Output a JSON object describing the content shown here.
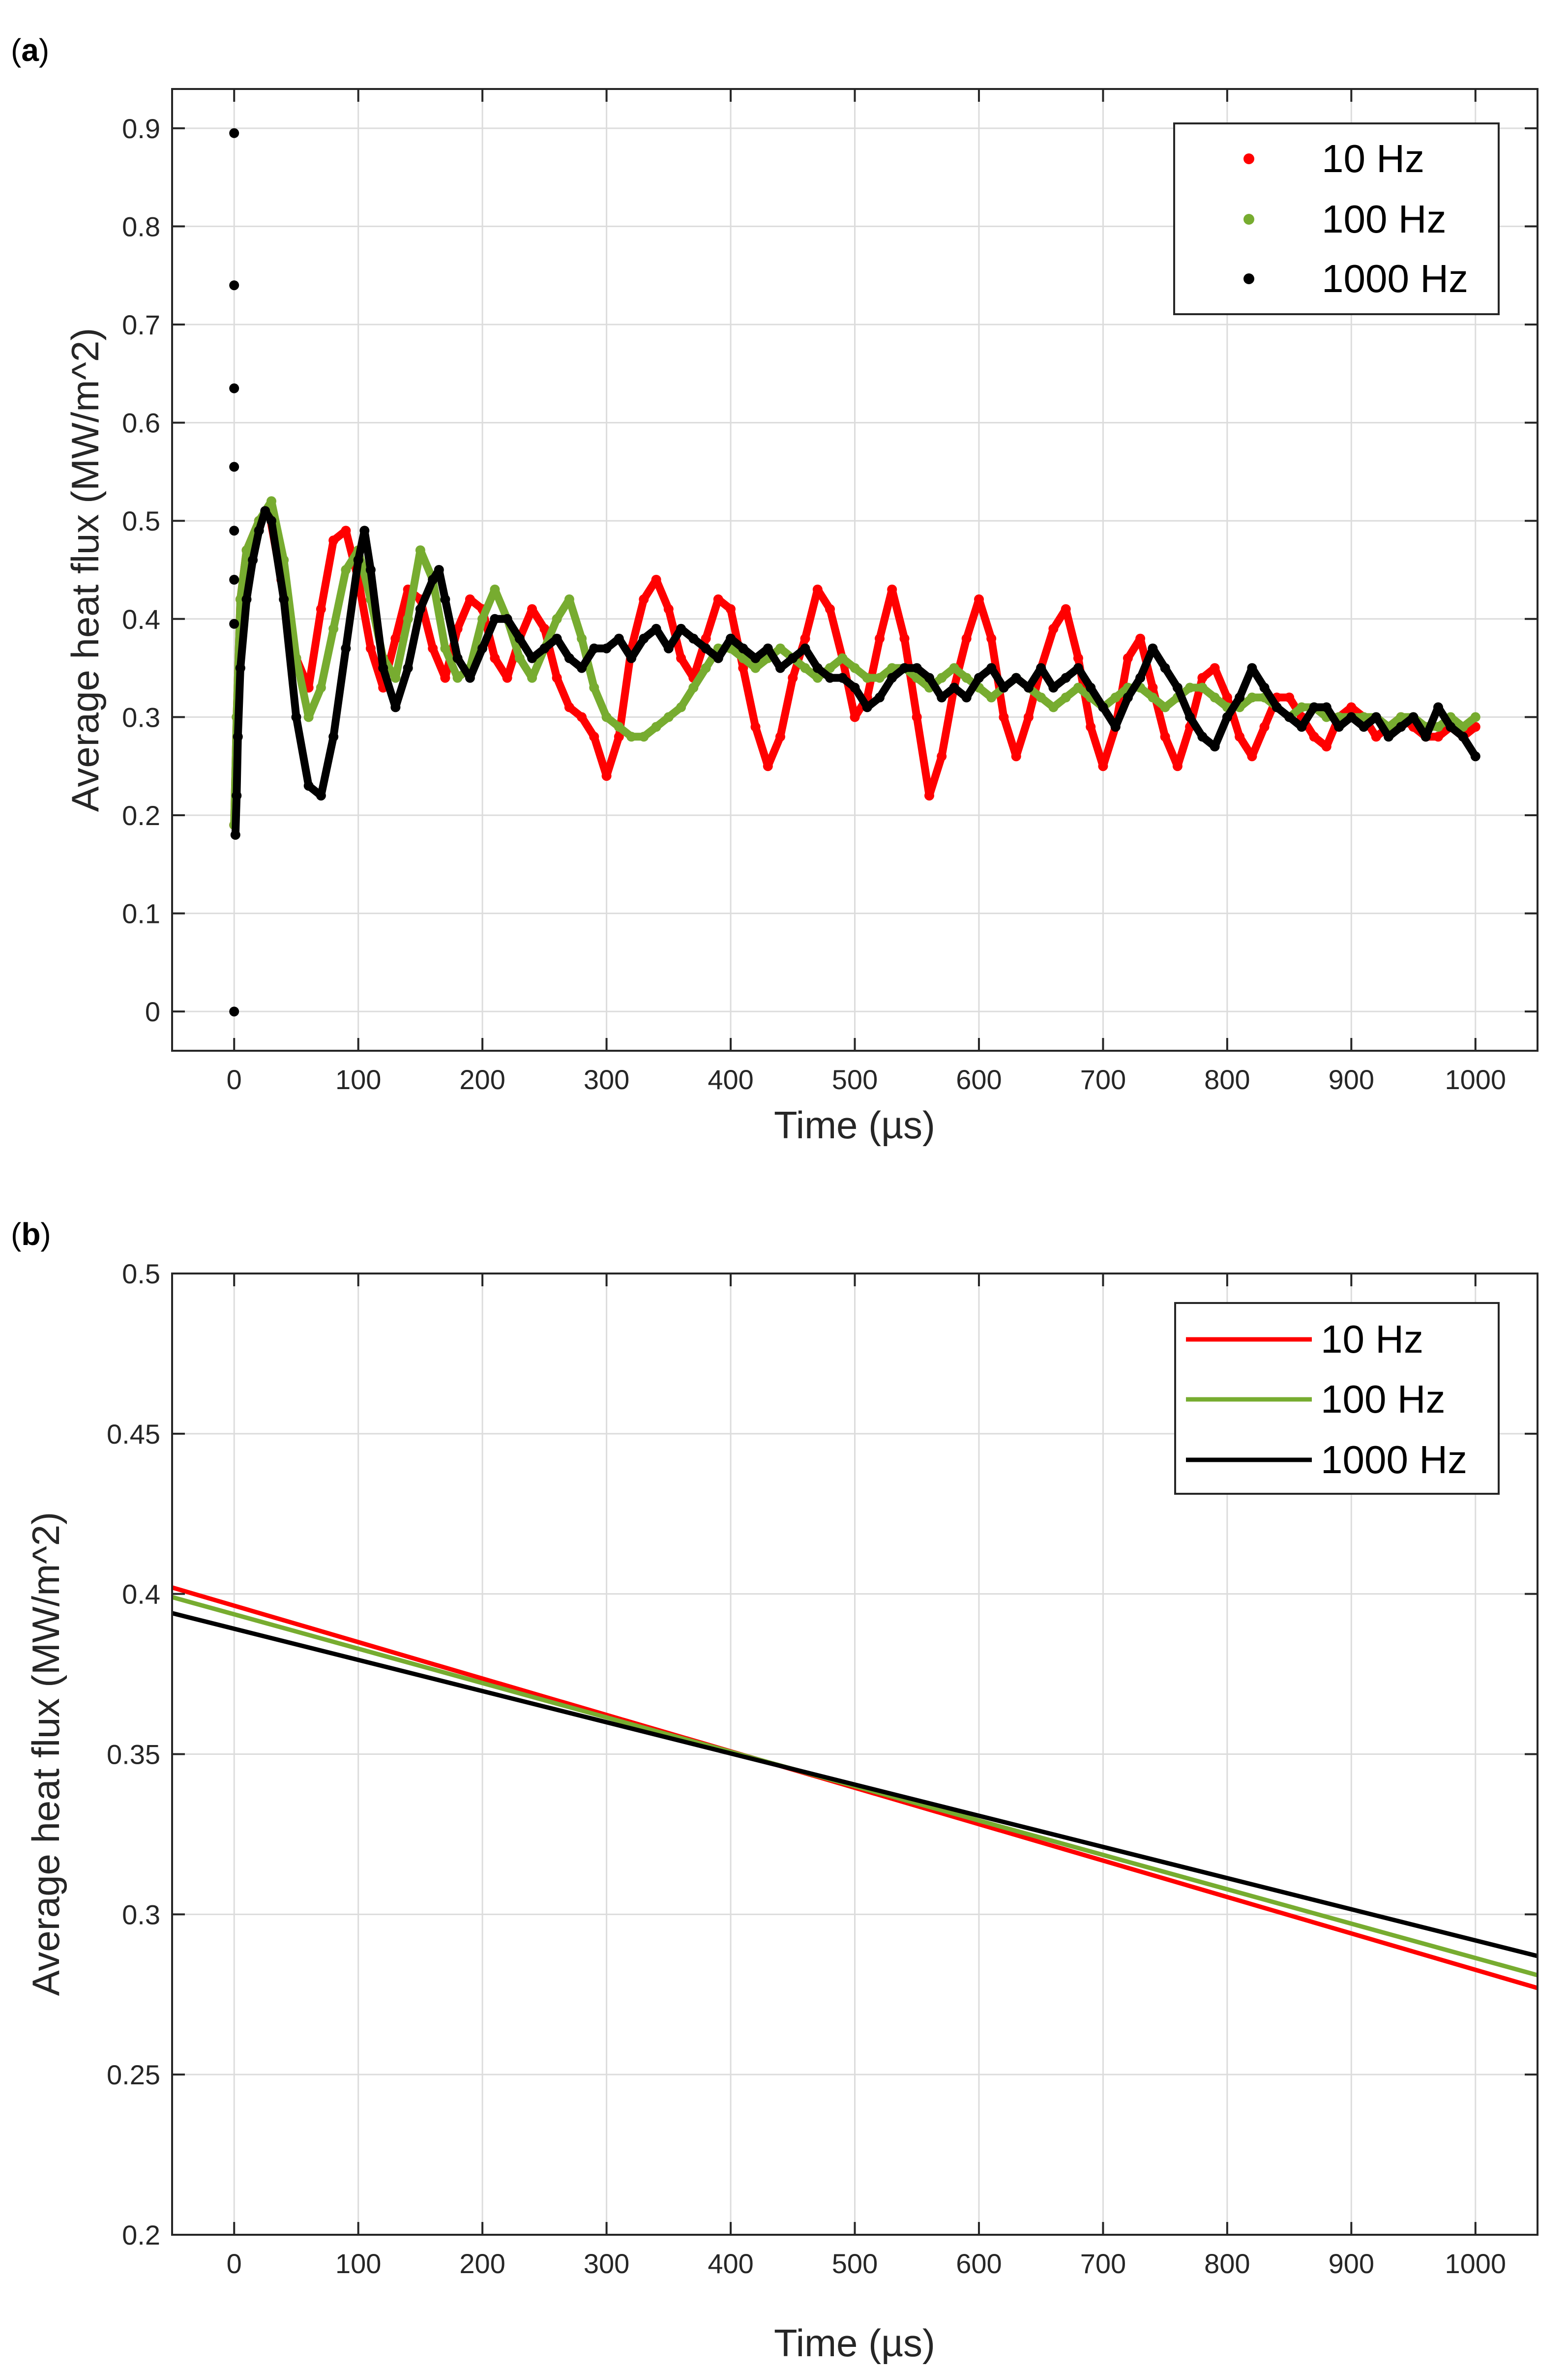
{
  "colors": {
    "10 Hz": "#ff0000",
    "100 Hz": "#77ac30",
    "1000 Hz": "#000000",
    "grid": "#dcdcdc",
    "axes": "#262626"
  },
  "chart_data": [
    {
      "panel": "(a)",
      "panel_letter": "a",
      "type": "scatter",
      "xlabel": "Time (µs)",
      "ylabel": "Average heat flux (MW/m^2)",
      "xlim": [
        -50,
        1050
      ],
      "ylim": [
        -0.04,
        0.94
      ],
      "xticks": [
        0,
        100,
        200,
        300,
        400,
        500,
        600,
        700,
        800,
        900,
        1000
      ],
      "yticks": [
        0,
        0.1,
        0.2,
        0.3,
        0.4,
        0.5,
        0.6,
        0.7,
        0.8,
        0.9
      ],
      "ytick_labels": [
        "0",
        "0.1",
        "0.2",
        "0.3",
        "0.4",
        "0.5",
        "0.6",
        "0.7",
        "0.8",
        "0.9"
      ],
      "grid": true,
      "legend_position": "top-right",
      "series": [
        {
          "name": "10 Hz",
          "color": "#ff0000",
          "x": [
            0,
            2,
            5,
            10,
            20,
            28,
            38,
            50,
            60,
            70,
            80,
            90,
            100,
            110,
            120,
            130,
            140,
            150,
            160,
            170,
            180,
            190,
            200,
            210,
            220,
            230,
            240,
            250,
            260,
            270,
            280,
            290,
            300,
            310,
            320,
            330,
            340,
            350,
            360,
            370,
            380,
            390,
            400,
            410,
            420,
            430,
            440,
            450,
            460,
            470,
            480,
            490,
            500,
            510,
            520,
            530,
            540,
            550,
            560,
            570,
            580,
            590,
            600,
            610,
            620,
            630,
            640,
            650,
            660,
            670,
            680,
            690,
            700,
            710,
            720,
            730,
            740,
            750,
            760,
            770,
            780,
            790,
            800,
            810,
            820,
            830,
            840,
            850,
            860,
            870,
            880,
            890,
            900,
            910,
            920,
            930,
            940,
            950,
            960,
            970,
            980,
            990,
            1000
          ],
          "y": [
            0.19,
            0.3,
            0.42,
            0.47,
            0.5,
            0.51,
            0.44,
            0.36,
            0.33,
            0.41,
            0.48,
            0.49,
            0.44,
            0.37,
            0.33,
            0.38,
            0.43,
            0.42,
            0.37,
            0.34,
            0.39,
            0.42,
            0.41,
            0.36,
            0.34,
            0.38,
            0.41,
            0.39,
            0.34,
            0.31,
            0.3,
            0.28,
            0.24,
            0.28,
            0.37,
            0.42,
            0.44,
            0.41,
            0.36,
            0.34,
            0.38,
            0.42,
            0.41,
            0.35,
            0.29,
            0.25,
            0.28,
            0.34,
            0.38,
            0.43,
            0.41,
            0.36,
            0.3,
            0.32,
            0.38,
            0.43,
            0.38,
            0.3,
            0.22,
            0.26,
            0.33,
            0.38,
            0.42,
            0.38,
            0.3,
            0.26,
            0.3,
            0.35,
            0.39,
            0.41,
            0.36,
            0.29,
            0.25,
            0.29,
            0.36,
            0.38,
            0.33,
            0.28,
            0.25,
            0.29,
            0.34,
            0.35,
            0.32,
            0.28,
            0.26,
            0.29,
            0.32,
            0.32,
            0.3,
            0.28,
            0.27,
            0.3,
            0.31,
            0.3,
            0.28,
            0.29,
            0.3,
            0.29,
            0.28,
            0.28,
            0.29,
            0.28,
            0.29
          ]
        },
        {
          "name": "100 Hz",
          "color": "#77ac30",
          "x": [
            0,
            2,
            5,
            10,
            20,
            30,
            40,
            50,
            60,
            70,
            80,
            90,
            100,
            110,
            120,
            130,
            140,
            150,
            160,
            170,
            180,
            190,
            200,
            210,
            220,
            230,
            240,
            250,
            260,
            270,
            280,
            290,
            300,
            310,
            320,
            330,
            340,
            350,
            360,
            370,
            380,
            390,
            400,
            410,
            420,
            430,
            440,
            450,
            460,
            470,
            480,
            490,
            500,
            510,
            520,
            530,
            540,
            550,
            560,
            570,
            580,
            590,
            600,
            610,
            620,
            630,
            640,
            650,
            660,
            670,
            680,
            690,
            700,
            710,
            720,
            730,
            740,
            750,
            760,
            770,
            780,
            790,
            800,
            810,
            820,
            830,
            840,
            850,
            860,
            870,
            880,
            890,
            900,
            910,
            920,
            930,
            940,
            950,
            960,
            970,
            980,
            990,
            1000
          ],
          "y": [
            0.19,
            0.3,
            0.42,
            0.47,
            0.5,
            0.52,
            0.46,
            0.36,
            0.3,
            0.33,
            0.39,
            0.45,
            0.47,
            0.42,
            0.36,
            0.34,
            0.4,
            0.47,
            0.44,
            0.37,
            0.34,
            0.35,
            0.4,
            0.43,
            0.4,
            0.36,
            0.34,
            0.37,
            0.4,
            0.42,
            0.38,
            0.33,
            0.3,
            0.29,
            0.28,
            0.28,
            0.29,
            0.3,
            0.31,
            0.33,
            0.35,
            0.37,
            0.37,
            0.36,
            0.35,
            0.36,
            0.37,
            0.36,
            0.35,
            0.34,
            0.35,
            0.36,
            0.35,
            0.34,
            0.34,
            0.35,
            0.35,
            0.34,
            0.33,
            0.34,
            0.35,
            0.34,
            0.33,
            0.32,
            0.33,
            0.34,
            0.33,
            0.32,
            0.31,
            0.32,
            0.33,
            0.32,
            0.31,
            0.32,
            0.33,
            0.33,
            0.32,
            0.31,
            0.32,
            0.33,
            0.33,
            0.32,
            0.31,
            0.31,
            0.32,
            0.32,
            0.31,
            0.3,
            0.31,
            0.31,
            0.3,
            0.3,
            0.3,
            0.3,
            0.3,
            0.29,
            0.3,
            0.3,
            0.29,
            0.29,
            0.3,
            0.29,
            0.3
          ]
        },
        {
          "name": "1000 Hz",
          "color": "#000000",
          "x": [
            0,
            0,
            0,
            0,
            0,
            0,
            0,
            0,
            1,
            2,
            3,
            5,
            10,
            15,
            20,
            25,
            30,
            40,
            50,
            60,
            70,
            80,
            90,
            100,
            105,
            110,
            120,
            130,
            140,
            150,
            160,
            165,
            170,
            180,
            190,
            200,
            210,
            220,
            230,
            240,
            250,
            260,
            270,
            280,
            290,
            300,
            310,
            320,
            330,
            340,
            350,
            360,
            370,
            380,
            390,
            400,
            410,
            420,
            430,
            440,
            450,
            460,
            470,
            480,
            490,
            500,
            510,
            520,
            530,
            540,
            550,
            560,
            570,
            580,
            590,
            600,
            610,
            620,
            630,
            640,
            650,
            660,
            670,
            680,
            690,
            700,
            710,
            720,
            730,
            740,
            750,
            760,
            770,
            780,
            790,
            800,
            810,
            820,
            830,
            840,
            850,
            860,
            870,
            880,
            890,
            900,
            910,
            920,
            930,
            940,
            950,
            960,
            970,
            980,
            990,
            1000
          ],
          "y": [
            0.895,
            0.74,
            0.635,
            0.555,
            0.49,
            0.44,
            0.395,
            0.0,
            0.18,
            0.22,
            0.28,
            0.35,
            0.42,
            0.46,
            0.49,
            0.51,
            0.5,
            0.42,
            0.3,
            0.23,
            0.22,
            0.28,
            0.37,
            0.46,
            0.49,
            0.45,
            0.35,
            0.31,
            0.35,
            0.41,
            0.44,
            0.45,
            0.42,
            0.36,
            0.34,
            0.37,
            0.4,
            0.4,
            0.38,
            0.36,
            0.37,
            0.38,
            0.36,
            0.35,
            0.37,
            0.37,
            0.38,
            0.36,
            0.38,
            0.39,
            0.37,
            0.39,
            0.38,
            0.37,
            0.36,
            0.38,
            0.37,
            0.36,
            0.37,
            0.35,
            0.36,
            0.37,
            0.35,
            0.34,
            0.34,
            0.33,
            0.31,
            0.32,
            0.34,
            0.35,
            0.35,
            0.34,
            0.32,
            0.33,
            0.32,
            0.34,
            0.35,
            0.33,
            0.34,
            0.33,
            0.35,
            0.33,
            0.34,
            0.35,
            0.33,
            0.31,
            0.29,
            0.32,
            0.34,
            0.37,
            0.35,
            0.33,
            0.3,
            0.28,
            0.27,
            0.3,
            0.32,
            0.35,
            0.33,
            0.31,
            0.3,
            0.29,
            0.31,
            0.31,
            0.29,
            0.3,
            0.29,
            0.3,
            0.28,
            0.29,
            0.3,
            0.28,
            0.31,
            0.29,
            0.28,
            0.26
          ]
        }
      ]
    },
    {
      "panel": "(b)",
      "panel_letter": "b",
      "type": "line",
      "xlabel": "Time (µs)",
      "ylabel": "Average heat flux (MW/m^2)",
      "xlim": [
        -50,
        1050
      ],
      "ylim": [
        0.2,
        0.5
      ],
      "xticks": [
        0,
        100,
        200,
        300,
        400,
        500,
        600,
        700,
        800,
        900,
        1000
      ],
      "yticks": [
        0.2,
        0.25,
        0.3,
        0.35,
        0.4,
        0.45,
        0.5
      ],
      "ytick_labels": [
        "0.2",
        "0.25",
        "0.3",
        "0.35",
        "0.4",
        "0.45",
        "0.5"
      ],
      "grid": true,
      "legend_position": "top-right",
      "series": [
        {
          "name": "10 Hz",
          "color": "#ff0000",
          "x": [
            -50,
            1050
          ],
          "y": [
            0.402,
            0.277
          ]
        },
        {
          "name": "100 Hz",
          "color": "#77ac30",
          "x": [
            -50,
            1050
          ],
          "y": [
            0.399,
            0.281
          ]
        },
        {
          "name": "1000 Hz",
          "color": "#000000",
          "x": [
            -50,
            1050
          ],
          "y": [
            0.394,
            0.287
          ]
        }
      ]
    }
  ]
}
